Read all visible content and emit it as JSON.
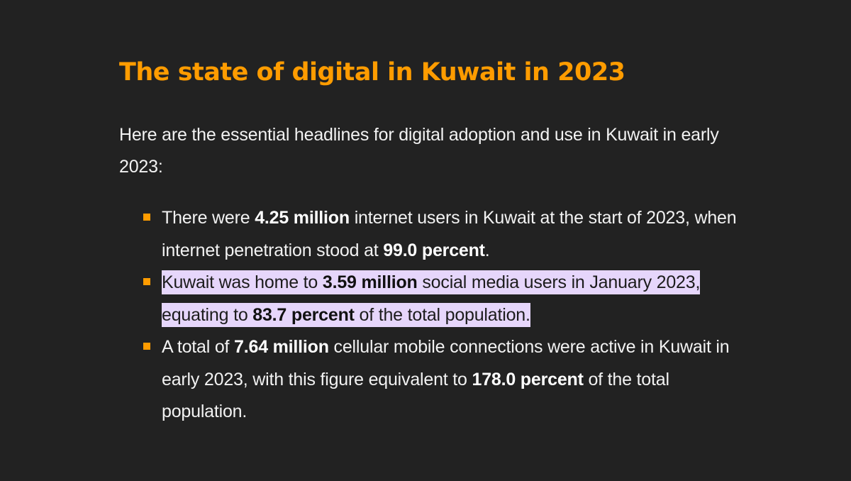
{
  "article": {
    "title": "The state of digital in Kuwait in 2023",
    "intro": "Here are the essential headlines for digital adoption and use in Kuwait in early 2023:",
    "bullets": [
      {
        "text_1": "There were ",
        "bold_1": "4.25 million",
        "text_2": " internet users in Kuwait at the start of 2023, when internet penetration stood at ",
        "bold_2": "99.0 percent",
        "text_3": ".",
        "selected": false
      },
      {
        "text_1": "Kuwait was home to ",
        "bold_1": "3.59 million",
        "text_2": " social media users in January 2023, equating to ",
        "bold_2": "83.7 percent",
        "text_3": " of the total population.",
        "selected": true
      },
      {
        "text_1": "A total of ",
        "bold_1": "7.64 million",
        "text_2": " cellular mobile connections were active in Kuwait in early 2023, with this figure equivalent to ",
        "bold_2": "178.0 percent",
        "text_3": " of the total population.",
        "selected": false
      }
    ]
  },
  "colors": {
    "background": "#222222",
    "accent": "#ff9c00",
    "text": "#f2f2f2",
    "selection_highlight": "#e6d6fb"
  },
  "icons": {
    "bullet": "orange-square-bullet"
  }
}
